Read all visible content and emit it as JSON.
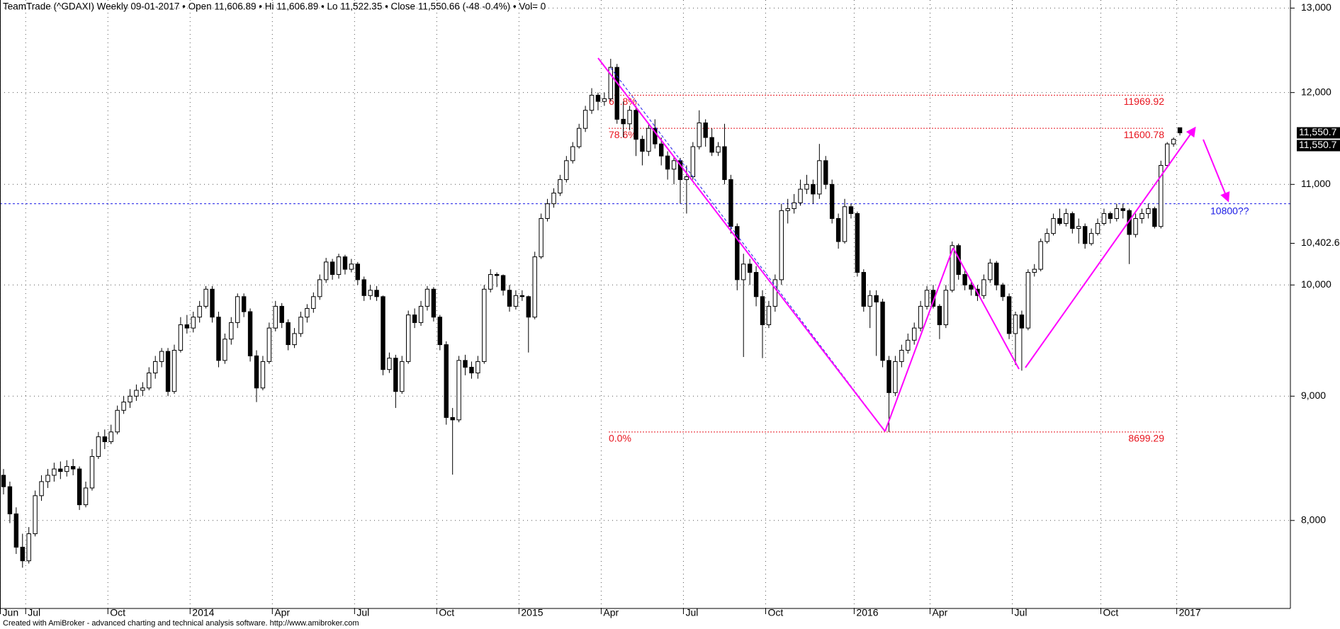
{
  "chart_data": {
    "type": "candlestick",
    "title": "TeamTrade (^GDAXI) Weekly  09-01-2017  •  Open 11,606.89  •  Hi 11,606.89  •  Lo 11,522.35  •  Close 11,550.66 (-48 -0.4%)  •  Vol= 0",
    "footer": "Created with AmiBroker - advanced charting and technical analysis software. http://www.amibroker.com",
    "log_scale": true,
    "grid": true,
    "up_color": "#ffffff",
    "down_color": "#000000",
    "ylim": [
      7360,
      13100
    ],
    "yticks": [
      {
        "value": 8000,
        "label": "8,000"
      },
      {
        "value": 9000,
        "label": "9,000"
      },
      {
        "value": 10000,
        "label": "10,000"
      },
      {
        "value": 11000,
        "label": "11,000"
      },
      {
        "value": 12000,
        "label": "12,000"
      },
      {
        "value": 13000,
        "label": "13,000"
      }
    ],
    "categories": [
      "Jun",
      null,
      null,
      null,
      "Jul",
      null,
      null,
      null,
      null,
      null,
      null,
      null,
      null,
      null,
      null,
      null,
      null,
      "Oct",
      null,
      null,
      null,
      null,
      null,
      null,
      null,
      null,
      null,
      null,
      null,
      null,
      "2014",
      null,
      null,
      null,
      null,
      null,
      null,
      null,
      null,
      null,
      null,
      null,
      null,
      "Apr",
      null,
      null,
      null,
      null,
      null,
      null,
      null,
      null,
      null,
      null,
      null,
      null,
      "Jul",
      null,
      null,
      null,
      null,
      null,
      null,
      null,
      null,
      null,
      null,
      null,
      null,
      "Oct",
      null,
      null,
      null,
      null,
      null,
      null,
      null,
      null,
      null,
      null,
      null,
      null,
      "2015",
      null,
      null,
      null,
      null,
      null,
      null,
      null,
      null,
      null,
      null,
      null,
      null,
      "Apr",
      null,
      null,
      null,
      null,
      null,
      null,
      null,
      null,
      null,
      null,
      null,
      null,
      "Jul",
      null,
      null,
      null,
      null,
      null,
      null,
      null,
      null,
      null,
      null,
      null,
      null,
      "Oct",
      null,
      null,
      null,
      null,
      null,
      null,
      null,
      null,
      null,
      null,
      null,
      null,
      null,
      "2016",
      null,
      null,
      null,
      null,
      null,
      null,
      null,
      null,
      null,
      null,
      null,
      "Apr",
      null,
      null,
      null,
      null,
      null,
      null,
      null,
      null,
      null,
      null,
      null,
      null,
      "Jul",
      null,
      null,
      null,
      null,
      null,
      null,
      null,
      null,
      null,
      null,
      null,
      null,
      null,
      "Oct",
      null,
      null,
      null,
      null,
      null,
      null,
      null,
      null,
      null,
      null,
      null,
      "2017"
    ],
    "ohlc": [
      [
        8350,
        8400,
        8200,
        8260
      ],
      [
        8260,
        8300,
        7980,
        8050
      ],
      [
        8050,
        8100,
        7750,
        7800
      ],
      [
        7800,
        7900,
        7650,
        7700
      ],
      [
        7700,
        7950,
        7680,
        7900
      ],
      [
        7900,
        8230,
        7880,
        8190
      ],
      [
        8190,
        8350,
        8150,
        8300
      ],
      [
        8300,
        8400,
        8250,
        8350
      ],
      [
        8350,
        8450,
        8300,
        8400
      ],
      [
        8400,
        8460,
        8320,
        8380
      ],
      [
        8380,
        8470,
        8340,
        8420
      ],
      [
        8420,
        8480,
        8350,
        8400
      ],
      [
        8400,
        8420,
        8080,
        8120
      ],
      [
        8120,
        8300,
        8100,
        8250
      ],
      [
        8250,
        8560,
        8230,
        8500
      ],
      [
        8500,
        8700,
        8480,
        8660
      ],
      [
        8660,
        8720,
        8560,
        8620
      ],
      [
        8620,
        8760,
        8600,
        8700
      ],
      [
        8700,
        8920,
        8680,
        8880
      ],
      [
        8880,
        9000,
        8850,
        8950
      ],
      [
        8950,
        9060,
        8900,
        9000
      ],
      [
        9000,
        9100,
        8960,
        9050
      ],
      [
        9050,
        9120,
        9000,
        9070
      ],
      [
        9070,
        9250,
        9050,
        9200
      ],
      [
        9200,
        9350,
        9150,
        9300
      ],
      [
        9300,
        9420,
        9250,
        9390
      ],
      [
        9390,
        9420,
        9000,
        9040
      ],
      [
        9040,
        9450,
        9020,
        9400
      ],
      [
        9400,
        9700,
        9380,
        9630
      ],
      [
        9630,
        9720,
        9550,
        9600
      ],
      [
        9600,
        9750,
        9560,
        9700
      ],
      [
        9700,
        9850,
        9650,
        9800
      ],
      [
        9800,
        9990,
        9780,
        9960
      ],
      [
        9960,
        9990,
        9650,
        9700
      ],
      [
        9700,
        9750,
        9250,
        9310
      ],
      [
        9310,
        9550,
        9280,
        9500
      ],
      [
        9500,
        9700,
        9450,
        9650
      ],
      [
        9650,
        9920,
        9600,
        9890
      ],
      [
        9890,
        9920,
        9700,
        9750
      ],
      [
        9750,
        9780,
        9300,
        9350
      ],
      [
        9350,
        9400,
        8950,
        9070
      ],
      [
        9070,
        9350,
        9050,
        9300
      ],
      [
        9300,
        9650,
        9280,
        9600
      ],
      [
        9600,
        9850,
        9570,
        9800
      ],
      [
        9800,
        9830,
        9600,
        9650
      ],
      [
        9650,
        9680,
        9400,
        9450
      ],
      [
        9450,
        9600,
        9420,
        9550
      ],
      [
        9550,
        9750,
        9520,
        9700
      ],
      [
        9700,
        9820,
        9650,
        9780
      ],
      [
        9780,
        9930,
        9740,
        9890
      ],
      [
        9890,
        10100,
        9860,
        10050
      ],
      [
        10050,
        10260,
        10020,
        10220
      ],
      [
        10220,
        10250,
        10050,
        10100
      ],
      [
        10100,
        10300,
        10060,
        10270
      ],
      [
        10270,
        10290,
        10100,
        10150
      ],
      [
        10150,
        10250,
        10120,
        10200
      ],
      [
        10200,
        10220,
        10000,
        10050
      ],
      [
        10050,
        10080,
        9850,
        9900
      ],
      [
        9900,
        10000,
        9860,
        9950
      ],
      [
        9950,
        9990,
        9850,
        9890
      ],
      [
        9890,
        9900,
        9180,
        9230
      ],
      [
        9230,
        9380,
        9200,
        9330
      ],
      [
        9330,
        9360,
        8900,
        9040
      ],
      [
        9040,
        9350,
        9020,
        9300
      ],
      [
        9300,
        9760,
        9280,
        9720
      ],
      [
        9720,
        9780,
        9600,
        9650
      ],
      [
        9650,
        9850,
        9620,
        9800
      ],
      [
        9800,
        9990,
        9760,
        9960
      ],
      [
        9960,
        9980,
        9660,
        9700
      ],
      [
        9700,
        9720,
        9400,
        9450
      ],
      [
        9450,
        9480,
        8760,
        8820
      ],
      [
        8820,
        8900,
        8355,
        8800
      ],
      [
        8800,
        9350,
        8780,
        9310
      ],
      [
        9310,
        9360,
        9180,
        9250
      ],
      [
        9250,
        9300,
        9150,
        9200
      ],
      [
        9200,
        9350,
        9150,
        9300
      ],
      [
        9300,
        10000,
        9280,
        9960
      ],
      [
        9960,
        10150,
        9930,
        10100
      ],
      [
        10100,
        10120,
        9980,
        10090
      ],
      [
        10090,
        10100,
        9900,
        9950
      ],
      [
        9950,
        10000,
        9750,
        9800
      ],
      [
        9800,
        9950,
        9770,
        9900
      ],
      [
        9900,
        9950,
        9850,
        9890
      ],
      [
        9890,
        9900,
        9380,
        9700
      ],
      [
        9700,
        10320,
        9680,
        10270
      ],
      [
        10270,
        10700,
        10250,
        10650
      ],
      [
        10650,
        10850,
        10620,
        10800
      ],
      [
        10800,
        10960,
        10760,
        10910
      ],
      [
        10910,
        11100,
        10880,
        11050
      ],
      [
        11050,
        11300,
        11020,
        11250
      ],
      [
        11250,
        11450,
        11220,
        11400
      ],
      [
        11400,
        11650,
        11380,
        11600
      ],
      [
        11600,
        11850,
        11560,
        11800
      ],
      [
        11800,
        12050,
        11760,
        11970
      ],
      [
        11970,
        12000,
        11800,
        11900
      ],
      [
        11900,
        12000,
        11850,
        11930
      ],
      [
        11930,
        12390,
        11900,
        12290
      ],
      [
        12290,
        12330,
        11650,
        11700
      ],
      [
        11700,
        11900,
        11500,
        11650
      ],
      [
        11650,
        11850,
        11580,
        11800
      ],
      [
        11800,
        11850,
        11300,
        11480
      ],
      [
        11480,
        11520,
        11200,
        11350
      ],
      [
        11350,
        11650,
        11300,
        11600
      ],
      [
        11600,
        11700,
        11380,
        11430
      ],
      [
        11430,
        11500,
        11200,
        11300
      ],
      [
        11300,
        11350,
        11050,
        11160
      ],
      [
        11160,
        11300,
        11000,
        11250
      ],
      [
        11250,
        11280,
        10800,
        11050
      ],
      [
        11050,
        11200,
        10700,
        11080
      ],
      [
        11080,
        11450,
        11050,
        11400
      ],
      [
        11400,
        11800,
        11370,
        11660
      ],
      [
        11660,
        11700,
        11400,
        11500
      ],
      [
        11500,
        11600,
        11300,
        11340
      ],
      [
        11340,
        11450,
        11300,
        11400
      ],
      [
        11400,
        11650,
        11000,
        11050
      ],
      [
        11050,
        11100,
        10500,
        10570
      ],
      [
        10570,
        10600,
        9950,
        10050
      ],
      [
        10050,
        10300,
        9340,
        10200
      ],
      [
        10200,
        10250,
        10000,
        10120
      ],
      [
        10120,
        10180,
        9800,
        9890
      ],
      [
        9890,
        9950,
        9330,
        9630
      ],
      [
        9630,
        9850,
        9600,
        9800
      ],
      [
        9800,
        10100,
        9750,
        10050
      ],
      [
        10050,
        10800,
        10000,
        10730
      ],
      [
        10730,
        10850,
        10600,
        10750
      ],
      [
        10750,
        10900,
        10700,
        10810
      ],
      [
        10810,
        11050,
        10780,
        10950
      ],
      [
        10950,
        11100,
        10900,
        11000
      ],
      [
        11000,
        11050,
        10800,
        10900
      ],
      [
        10900,
        11430,
        10850,
        11250
      ],
      [
        11250,
        11300,
        10950,
        11000
      ],
      [
        11000,
        11050,
        10600,
        10650
      ],
      [
        10650,
        10700,
        10350,
        10420
      ],
      [
        10420,
        10850,
        10400,
        10770
      ],
      [
        10770,
        10800,
        10650,
        10700
      ],
      [
        10700,
        10720,
        10080,
        10120
      ],
      [
        10120,
        10150,
        9750,
        9800
      ],
      [
        9800,
        9950,
        9600,
        9900
      ],
      [
        9900,
        9950,
        9350,
        9840
      ],
      [
        9840,
        9870,
        9250,
        9310
      ],
      [
        9310,
        9350,
        8699.29,
        9030
      ],
      [
        9030,
        9350,
        9000,
        9300
      ],
      [
        9300,
        9450,
        9250,
        9400
      ],
      [
        9400,
        9550,
        9370,
        9490
      ],
      [
        9490,
        9650,
        9450,
        9600
      ],
      [
        9600,
        9850,
        9570,
        9800
      ],
      [
        9800,
        9990,
        9770,
        9950
      ],
      [
        9950,
        10000,
        9780,
        9800
      ],
      [
        9800,
        9820,
        9500,
        9630
      ],
      [
        9630,
        10000,
        9600,
        9950
      ],
      [
        9950,
        10420,
        9930,
        10380
      ],
      [
        10380,
        10400,
        10050,
        10100
      ],
      [
        10100,
        10150,
        9950,
        10000
      ],
      [
        10000,
        10050,
        9900,
        9960
      ],
      [
        9960,
        10000,
        9850,
        9900
      ],
      [
        9900,
        10100,
        9870,
        10050
      ],
      [
        10050,
        10250,
        10020,
        10210
      ],
      [
        10210,
        10230,
        9950,
        10000
      ],
      [
        10000,
        10020,
        9850,
        9890
      ],
      [
        9890,
        9920,
        9500,
        9550
      ],
      [
        9550,
        9750,
        9270,
        9720
      ],
      [
        9720,
        9760,
        9220,
        9600
      ],
      [
        9600,
        10150,
        9580,
        10120
      ],
      [
        10120,
        10200,
        10080,
        10150
      ],
      [
        10150,
        10450,
        10130,
        10420
      ],
      [
        10420,
        10550,
        10400,
        10500
      ],
      [
        10500,
        10700,
        10480,
        10650
      ],
      [
        10650,
        10750,
        10580,
        10600
      ],
      [
        10600,
        10750,
        10570,
        10700
      ],
      [
        10700,
        10720,
        10500,
        10550
      ],
      [
        10550,
        10650,
        10400,
        10570
      ],
      [
        10570,
        10600,
        10350,
        10400
      ],
      [
        10400,
        10550,
        10380,
        10500
      ],
      [
        10500,
        10650,
        10480,
        10600
      ],
      [
        10600,
        10750,
        10580,
        10700
      ],
      [
        10700,
        10720,
        10600,
        10650
      ],
      [
        10650,
        10800,
        10620,
        10750
      ],
      [
        10750,
        10800,
        10650,
        10730
      ],
      [
        10730,
        10750,
        10200,
        10490
      ],
      [
        10490,
        10700,
        10460,
        10650
      ],
      [
        10650,
        10750,
        10600,
        10700
      ],
      [
        10700,
        10800,
        10650,
        10750
      ],
      [
        10750,
        10770,
        10550,
        10570
      ],
      [
        10570,
        11250,
        10550,
        11200
      ],
      [
        11200,
        11450,
        11180,
        11430
      ],
      [
        11430,
        11500,
        11400,
        11480
      ],
      [
        11606.89,
        11606.89,
        11522.35,
        11550.66
      ]
    ],
    "fib_levels": [
      {
        "label": "61.8%",
        "value": 11969.92
      },
      {
        "label": "78.6%",
        "value": 11600.78
      },
      {
        "label": "0.0%",
        "value": 8699.29
      }
    ],
    "fib_color": "#e8141e",
    "target": {
      "value": 10800,
      "label": "10800??",
      "color": "#1a1ae6"
    },
    "price_labels": [
      {
        "value": 11550.66,
        "label": "11,550.7"
      },
      {
        "value": 11550.66,
        "label": "11,550.7"
      }
    ],
    "axis_markers": [
      {
        "value": 10402.6,
        "label": "10,402.6"
      }
    ]
  }
}
